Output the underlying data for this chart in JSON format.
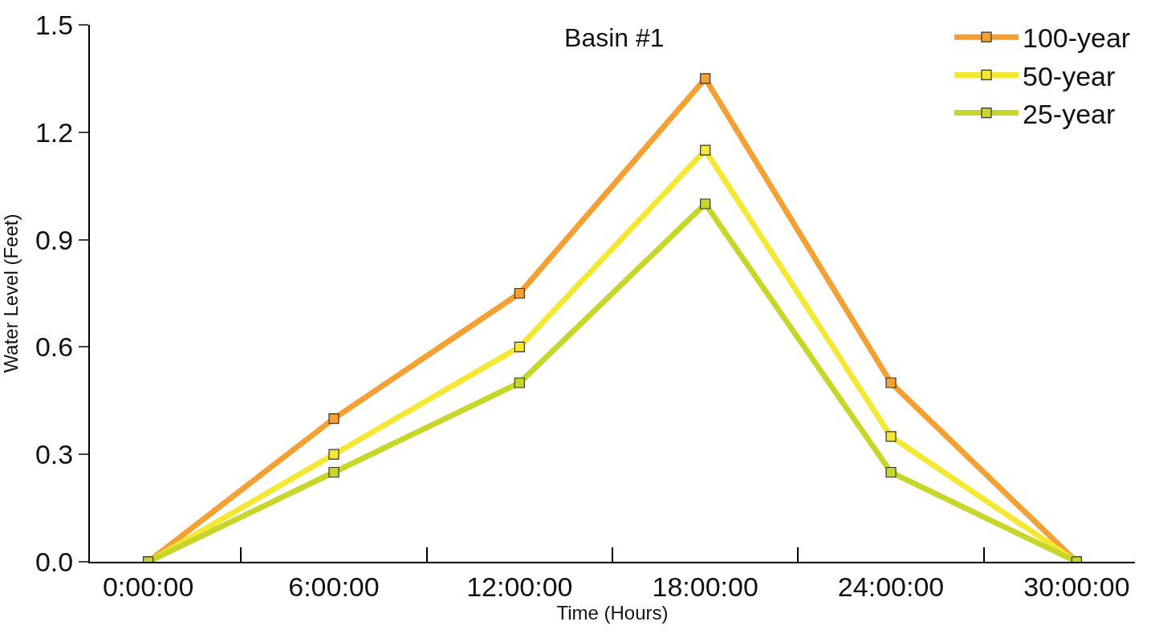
{
  "chart_data": {
    "type": "line",
    "title": "Basin #1",
    "xlabel": "Time (Hours)",
    "ylabel": "Water Level (Feet)",
    "categories": [
      "0:00:00",
      "6:00:00",
      "12:00:00",
      "18:00:00",
      "24:00:00",
      "30:00:00"
    ],
    "series": [
      {
        "name": "100-year",
        "color": "#f5a033",
        "values": [
          0,
          0.4,
          0.75,
          1.35,
          0.5,
          0
        ]
      },
      {
        "name": "50-year",
        "color": "#f5e833",
        "values": [
          0,
          0.3,
          0.6,
          1.15,
          0.35,
          0
        ]
      },
      {
        "name": "25-year",
        "color": "#c8d62a",
        "values": [
          0,
          0.25,
          0.5,
          1.0,
          0.25,
          0
        ]
      }
    ],
    "ylim": [
      0,
      1.5
    ],
    "yticks": [
      {
        "value": 0,
        "label": "0.0"
      },
      0.3,
      0.6,
      0.9,
      1.2,
      1.5
    ],
    "legend": "top right",
    "marker": "square",
    "line_style": "solid"
  }
}
